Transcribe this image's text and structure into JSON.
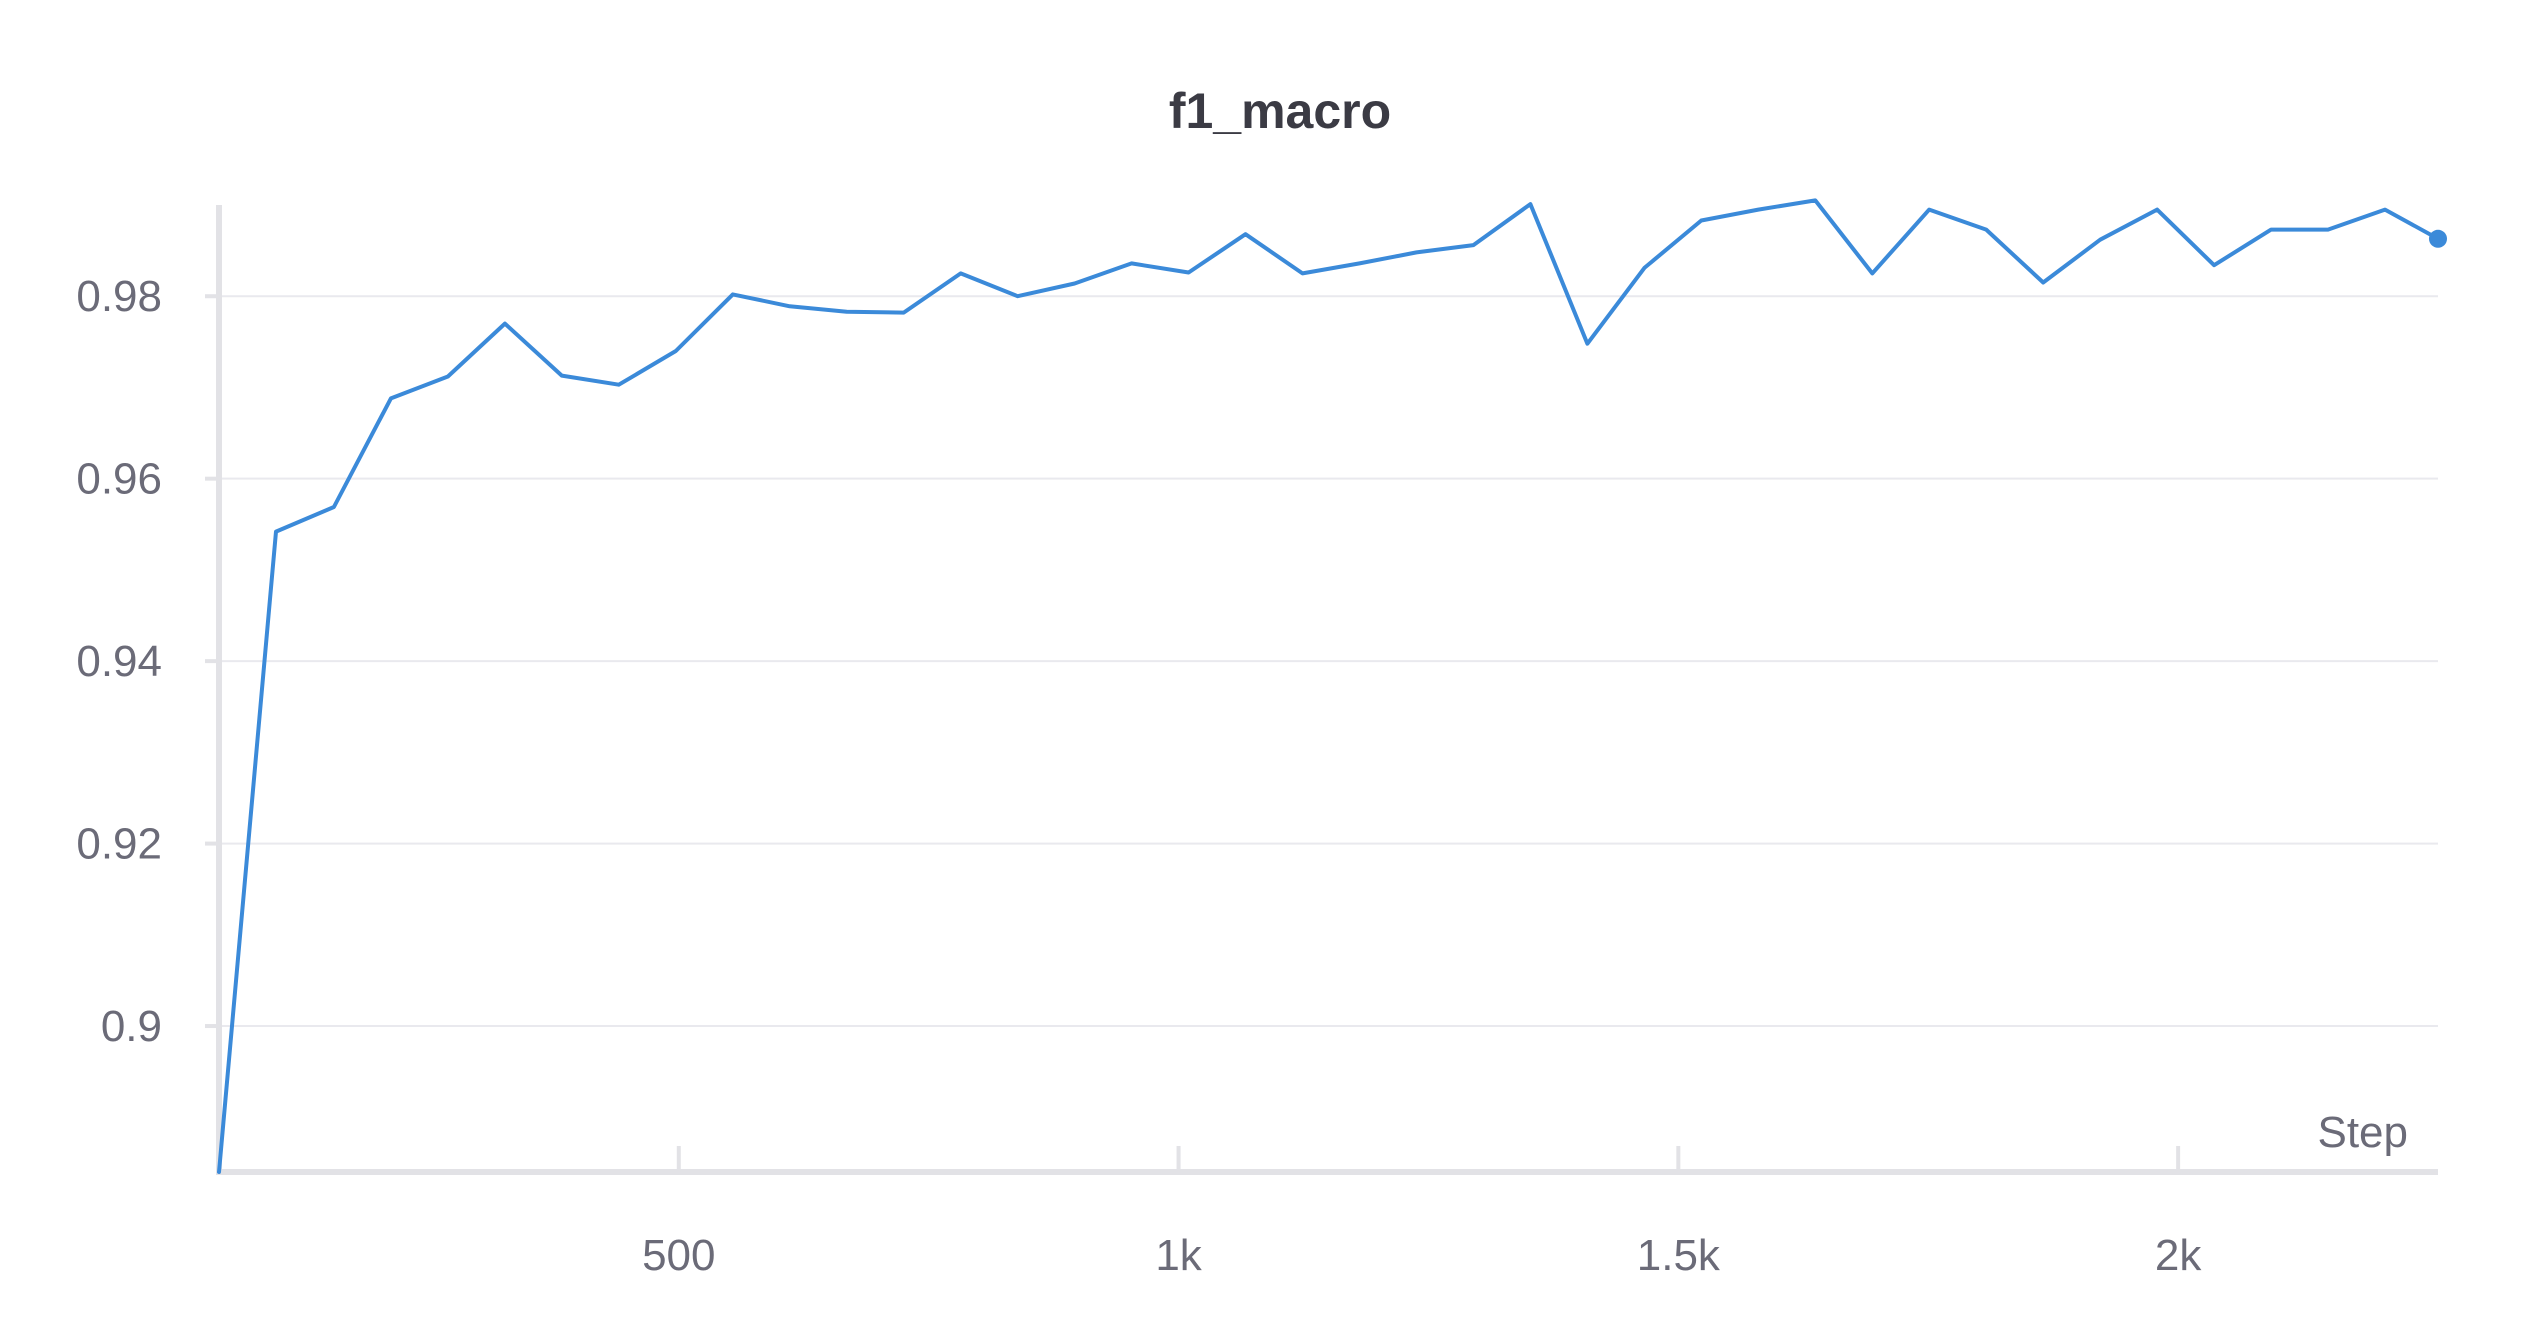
{
  "chart_data": {
    "type": "line",
    "title": "f1_macro",
    "xlabel": "Step",
    "ylabel": "",
    "xlim": [
      40,
      2260
    ],
    "ylim": [
      0.884,
      0.99
    ],
    "x_ticks": [
      {
        "value": 500,
        "label": "500"
      },
      {
        "value": 1000,
        "label": "1k"
      },
      {
        "value": 1500,
        "label": "1.5k"
      },
      {
        "value": 2000,
        "label": "2k"
      }
    ],
    "y_ticks": [
      {
        "value": 0.9,
        "label": "0.9"
      },
      {
        "value": 0.92,
        "label": "0.92"
      },
      {
        "value": 0.94,
        "label": "0.94"
      },
      {
        "value": 0.96,
        "label": "0.96"
      },
      {
        "value": 0.98,
        "label": "0.98"
      }
    ],
    "grid": true,
    "series": [
      {
        "color": "#3b8ad9",
        "end_marker": true,
        "x": [
          40,
          97,
          155,
          212,
          269,
          326,
          383,
          440,
          497,
          554,
          611,
          668,
          725,
          782,
          839,
          896,
          953,
          1010,
          1067,
          1124,
          1181,
          1238,
          1295,
          1352,
          1409,
          1466,
          1523,
          1580,
          1637,
          1694,
          1751,
          1808,
          1865,
          1922,
          1979,
          2036,
          2093,
          2150,
          2207,
          2260
        ],
        "y": [
          0.884,
          0.9542,
          0.9569,
          0.9688,
          0.9712,
          0.977,
          0.9713,
          0.9703,
          0.974,
          0.9802,
          0.9789,
          0.9783,
          0.9782,
          0.9825,
          0.98,
          0.9814,
          0.9836,
          0.9826,
          0.9868,
          0.9825,
          0.9836,
          0.9848,
          0.9856,
          0.9901,
          0.9748,
          0.9831,
          0.9883,
          0.9895,
          0.9905,
          0.9825,
          0.9895,
          0.9873,
          0.9815,
          0.9862,
          0.9895,
          0.9834,
          0.9873,
          0.9873,
          0.9895,
          0.9863
        ]
      }
    ]
  }
}
